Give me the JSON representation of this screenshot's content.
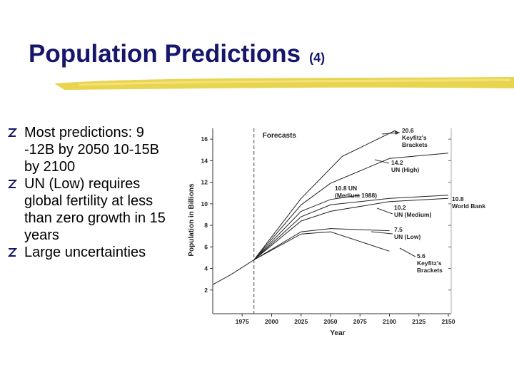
{
  "slide": {
    "title": "Population Predictions",
    "title_suffix": "(4)",
    "bullets": [
      "Most predictions: 9 -12B by 2050   10-15B by 2100",
      "UN (Low) requires global fertility at less than zero growth in 15 years",
      "Large uncertainties"
    ]
  },
  "figure": {
    "type": "line",
    "x_label": "Year",
    "y_label": "Population in Billions",
    "xlim": [
      1950,
      2150
    ],
    "ylim": [
      0,
      17
    ],
    "xticks": [
      1975,
      2000,
      2025,
      2050,
      2075,
      2100,
      2125,
      2150
    ],
    "yticks": [
      2,
      4,
      6,
      8,
      10,
      12,
      14,
      16
    ],
    "divider_x": 1985,
    "divider_label": "Forecasts",
    "series": [
      {
        "x": [
          1950,
          1965,
          1985
        ],
        "values": [
          2.5,
          3.4,
          4.8
        ],
        "label": []
      },
      {
        "x": [
          1985,
          2025,
          2060,
          2105
        ],
        "values": [
          4.8,
          10.5,
          14.4,
          16.8
        ],
        "label": [
          "20.6",
          "Keyfitz's",
          "Brackets"
        ]
      },
      {
        "x": [
          1985,
          2025,
          2050,
          2100,
          2150
        ],
        "values": [
          4.8,
          9.9,
          11.9,
          14.2,
          14.7
        ],
        "label": [
          "14.2",
          "UN (High)"
        ]
      },
      {
        "x": [
          1985,
          2025,
          2050,
          2075
        ],
        "values": [
          4.8,
          9.3,
          10.4,
          10.8
        ],
        "label": [
          "10.8 UN",
          "(Medium 1988)"
        ]
      },
      {
        "x": [
          1985,
          2025,
          2050,
          2100,
          2150
        ],
        "values": [
          4.8,
          8.8,
          9.9,
          10.5,
          10.8
        ],
        "label": [
          "10.8",
          "World Bank"
        ]
      },
      {
        "x": [
          1985,
          2025,
          2050,
          2100,
          2150
        ],
        "values": [
          4.8,
          8.4,
          9.3,
          10.2,
          10.5
        ],
        "label": [
          "10.2",
          "UN (Medium)"
        ]
      },
      {
        "x": [
          1985,
          2025,
          2050,
          2100
        ],
        "values": [
          4.8,
          7.4,
          7.7,
          7.5
        ],
        "label": [
          "7.5",
          "UN (Low)"
        ]
      },
      {
        "x": [
          1985,
          2025,
          2050,
          2100
        ],
        "values": [
          4.8,
          7.2,
          7.4,
          5.6
        ],
        "label": [
          "5.6",
          "Keyfitz's",
          "Brackets"
        ]
      }
    ]
  }
}
